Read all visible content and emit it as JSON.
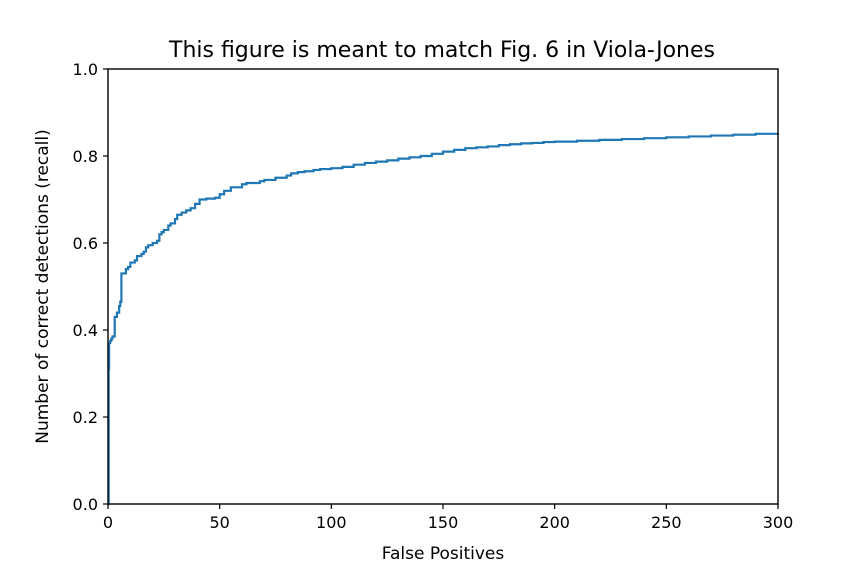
{
  "chart_data": {
    "type": "line",
    "title": "This figure is meant to match Fig. 6 in Viola-Jones",
    "xlabel": "False Positives",
    "ylabel": "Number of correct detections (recall)",
    "xlim": [
      0,
      300
    ],
    "ylim": [
      0.0,
      1.0
    ],
    "xticks": [
      "0",
      "50",
      "100",
      "150",
      "200",
      "250",
      "300"
    ],
    "yticks": [
      "0.0",
      "0.2",
      "0.4",
      "0.6",
      "0.8",
      "1.0"
    ],
    "grid": false,
    "legend": "none",
    "line_color": "#1f77b4",
    "series": [
      {
        "x": [
          0,
          0.3,
          0.5,
          1,
          1.5,
          2,
          3,
          4,
          5,
          5.5,
          6,
          8,
          9,
          10,
          12,
          13,
          15,
          16,
          17,
          18,
          20,
          22,
          23,
          24,
          25,
          27,
          28,
          30,
          31,
          33,
          35,
          37,
          39,
          41,
          44,
          48,
          50,
          52,
          55,
          60,
          62,
          68,
          70,
          75,
          80,
          82,
          85,
          88,
          92,
          95,
          100,
          105,
          110,
          115,
          120,
          125,
          130,
          135,
          140,
          145,
          150,
          155,
          160,
          165,
          170,
          175,
          180,
          185,
          190,
          195,
          200,
          210,
          220,
          230,
          240,
          250,
          260,
          270,
          280,
          290,
          300
        ],
        "y": [
          0.0,
          0.31,
          0.37,
          0.375,
          0.38,
          0.385,
          0.43,
          0.44,
          0.455,
          0.465,
          0.53,
          0.54,
          0.545,
          0.555,
          0.56,
          0.57,
          0.575,
          0.58,
          0.59,
          0.595,
          0.6,
          0.605,
          0.62,
          0.625,
          0.63,
          0.64,
          0.645,
          0.655,
          0.665,
          0.67,
          0.675,
          0.68,
          0.69,
          0.7,
          0.702,
          0.704,
          0.712,
          0.72,
          0.728,
          0.735,
          0.738,
          0.742,
          0.745,
          0.75,
          0.755,
          0.76,
          0.763,
          0.765,
          0.768,
          0.77,
          0.772,
          0.775,
          0.78,
          0.784,
          0.787,
          0.79,
          0.794,
          0.797,
          0.8,
          0.805,
          0.81,
          0.814,
          0.818,
          0.82,
          0.822,
          0.825,
          0.827,
          0.829,
          0.83,
          0.832,
          0.833,
          0.835,
          0.837,
          0.839,
          0.841,
          0.843,
          0.845,
          0.847,
          0.849,
          0.851,
          0.853
        ]
      }
    ]
  }
}
